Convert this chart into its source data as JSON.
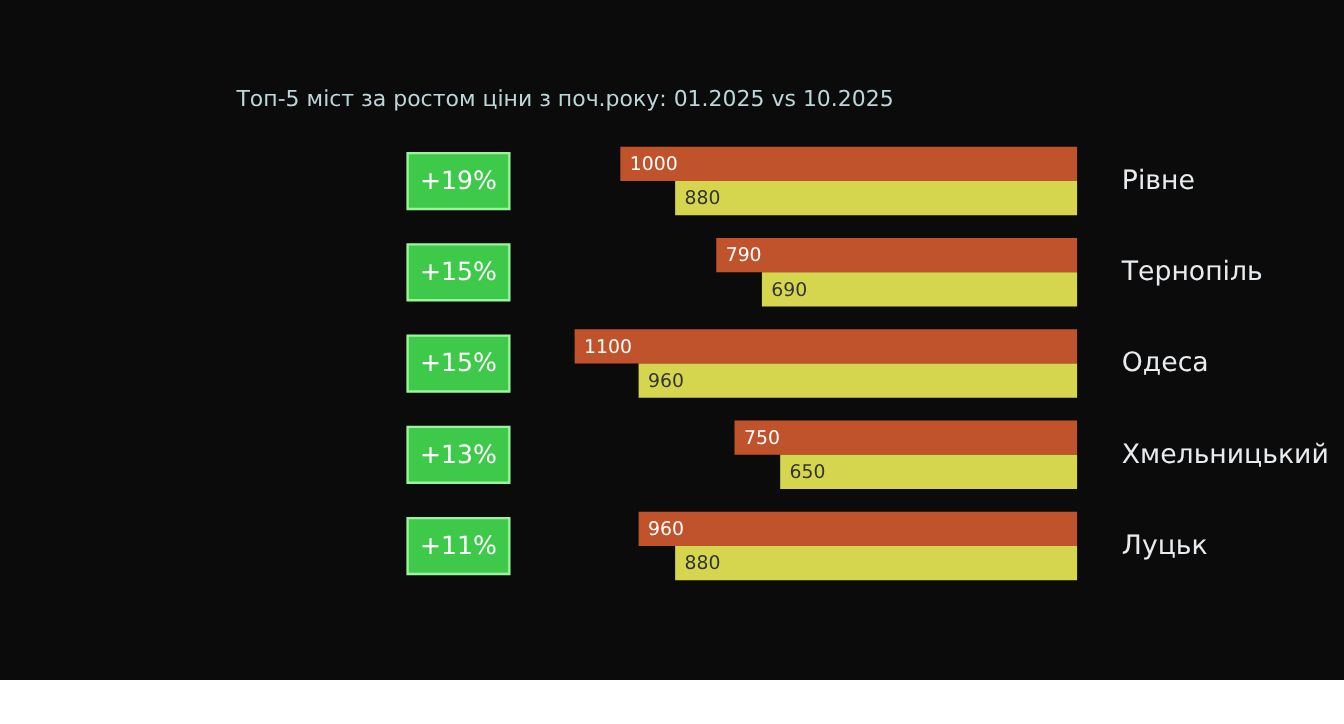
{
  "chart_data": {
    "type": "bar",
    "orientation": "horizontal",
    "title": "Топ-5 міст за ростом ціни з поч.року: 01.2025 vs 10.2025",
    "categories": [
      "Рівне",
      "Тернопіль",
      "Одеса",
      "Хмельницький",
      "Луцьк"
    ],
    "series": [
      {
        "color": "#c0532b",
        "values": [
          1000,
          790,
          1100,
          750,
          960
        ]
      },
      {
        "color": "#d6d64e",
        "values": [
          880,
          690,
          960,
          650,
          880
        ]
      }
    ],
    "tick_labels": "y",
    "grid": false,
    "legend": false,
    "data_labels": true,
    "annotations": [
      "+19%",
      "+15%",
      "+15%",
      "+13%",
      "+11%"
    ]
  }
}
